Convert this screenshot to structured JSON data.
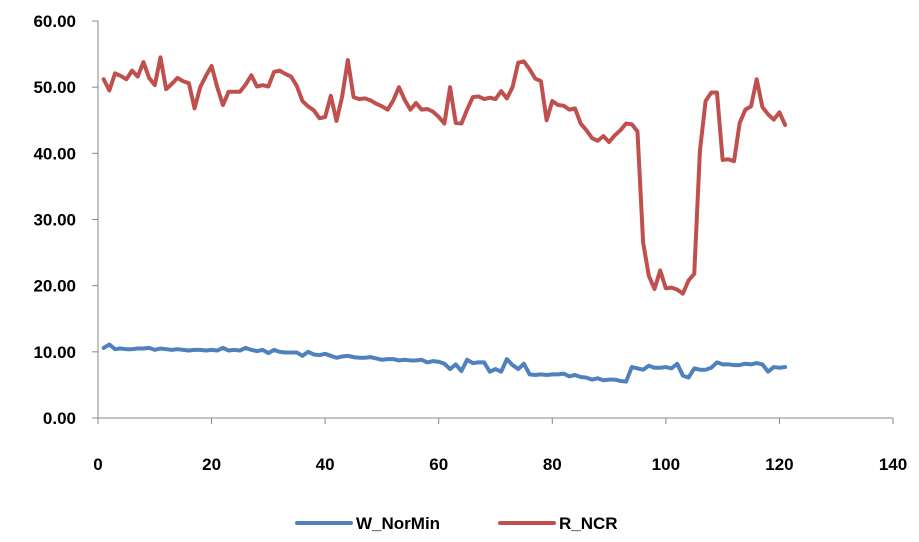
{
  "chart_data": {
    "type": "line",
    "title": "",
    "xlabel": "",
    "ylabel": "",
    "xlim": [
      0,
      140
    ],
    "ylim": [
      0,
      60
    ],
    "x_ticks": [
      0,
      20,
      40,
      60,
      80,
      100,
      120,
      140
    ],
    "y_ticks": [
      0,
      10,
      20,
      30,
      40,
      50,
      60
    ],
    "x_tick_labels": [
      "0",
      "20",
      "40",
      "60",
      "80",
      "100",
      "120",
      "140"
    ],
    "y_tick_labels": [
      "0.00",
      "10.00",
      "20.00",
      "30.00",
      "40.00",
      "50.00",
      "60.00"
    ],
    "grid": false,
    "legend_position": "bottom",
    "x": [
      1,
      2,
      3,
      4,
      5,
      6,
      7,
      8,
      9,
      10,
      11,
      12,
      13,
      14,
      15,
      16,
      17,
      18,
      19,
      20,
      21,
      22,
      23,
      24,
      25,
      26,
      27,
      28,
      29,
      30,
      31,
      32,
      33,
      34,
      35,
      36,
      37,
      38,
      39,
      40,
      41,
      42,
      43,
      44,
      45,
      46,
      47,
      48,
      49,
      50,
      51,
      52,
      53,
      54,
      55,
      56,
      57,
      58,
      59,
      60,
      61,
      62,
      63,
      64,
      65,
      66,
      67,
      68,
      69,
      70,
      71,
      72,
      73,
      74,
      75,
      76,
      77,
      78,
      79,
      80,
      81,
      82,
      83,
      84,
      85,
      86,
      87,
      88,
      89,
      90,
      91,
      92,
      93,
      94,
      95,
      96,
      97,
      98,
      99,
      100,
      101,
      102,
      103,
      104,
      105,
      106,
      107,
      108,
      109,
      110,
      111,
      112,
      113,
      114,
      115,
      116,
      117,
      118,
      119,
      120,
      121
    ],
    "series": [
      {
        "name": "W_NorMin",
        "color": "#4F81BD",
        "values": [
          10.6,
          11.1,
          10.4,
          10.5,
          10.4,
          10.4,
          10.5,
          10.5,
          10.6,
          10.3,
          10.5,
          10.4,
          10.3,
          10.4,
          10.3,
          10.2,
          10.3,
          10.3,
          10.2,
          10.3,
          10.2,
          10.6,
          10.2,
          10.3,
          10.2,
          10.6,
          10.3,
          10.1,
          10.3,
          9.8,
          10.3,
          10.0,
          9.9,
          9.9,
          9.9,
          9.4,
          10.0,
          9.6,
          9.5,
          9.7,
          9.4,
          9.1,
          9.3,
          9.4,
          9.2,
          9.1,
          9.1,
          9.2,
          9.0,
          8.8,
          8.9,
          8.9,
          8.7,
          8.8,
          8.7,
          8.7,
          8.8,
          8.4,
          8.6,
          8.5,
          8.2,
          7.4,
          8.1,
          7.1,
          8.8,
          8.3,
          8.4,
          8.4,
          7.0,
          7.4,
          7.0,
          8.9,
          8.0,
          7.4,
          8.2,
          6.6,
          6.5,
          6.6,
          6.5,
          6.6,
          6.6,
          6.7,
          6.3,
          6.5,
          6.2,
          6.1,
          5.8,
          6.0,
          5.7,
          5.8,
          5.8,
          5.6,
          5.5,
          7.7,
          7.5,
          7.3,
          7.9,
          7.6,
          7.6,
          7.7,
          7.5,
          8.2,
          6.4,
          6.1,
          7.5,
          7.3,
          7.3,
          7.6,
          8.4,
          8.1,
          8.1,
          8.0,
          8.0,
          8.2,
          8.1,
          8.3,
          8.1,
          7.0,
          7.7,
          7.6,
          7.7
        ]
      },
      {
        "name": "R_NCR",
        "color": "#C0504D",
        "values": [
          51.2,
          49.5,
          52.1,
          51.7,
          51.2,
          52.5,
          51.6,
          53.8,
          51.4,
          50.3,
          54.5,
          49.7,
          50.5,
          51.4,
          50.9,
          50.6,
          46.8,
          50.0,
          51.7,
          53.2,
          50.0,
          47.3,
          49.3,
          49.3,
          49.3,
          50.4,
          51.8,
          50.1,
          50.3,
          50.1,
          52.3,
          52.5,
          52.0,
          51.6,
          50.2,
          47.9,
          47.1,
          46.5,
          45.3,
          45.5,
          48.7,
          44.9,
          48.6,
          54.1,
          48.5,
          48.2,
          48.3,
          48.0,
          47.5,
          47.1,
          46.6,
          48.0,
          50.0,
          48.1,
          46.6,
          47.6,
          46.6,
          46.7,
          46.3,
          45.5,
          44.5,
          50.0,
          44.6,
          44.5,
          46.6,
          48.5,
          48.6,
          48.2,
          48.4,
          48.2,
          49.4,
          48.3,
          50.0,
          53.7,
          53.9,
          52.7,
          51.3,
          50.9,
          45.0,
          47.9,
          47.3,
          47.2,
          46.6,
          46.8,
          44.5,
          43.5,
          42.3,
          41.9,
          42.6,
          41.7,
          42.7,
          43.5,
          44.5,
          44.4,
          43.3,
          26.5,
          21.5,
          19.5,
          22.3,
          19.6,
          19.7,
          19.4,
          18.8,
          20.8,
          21.8,
          40.4,
          47.9,
          49.2,
          49.2,
          39.0,
          39.1,
          38.8,
          44.6,
          46.6,
          47.1,
          51.2,
          47.0,
          45.9,
          45.1,
          46.2,
          44.3
        ]
      }
    ]
  }
}
